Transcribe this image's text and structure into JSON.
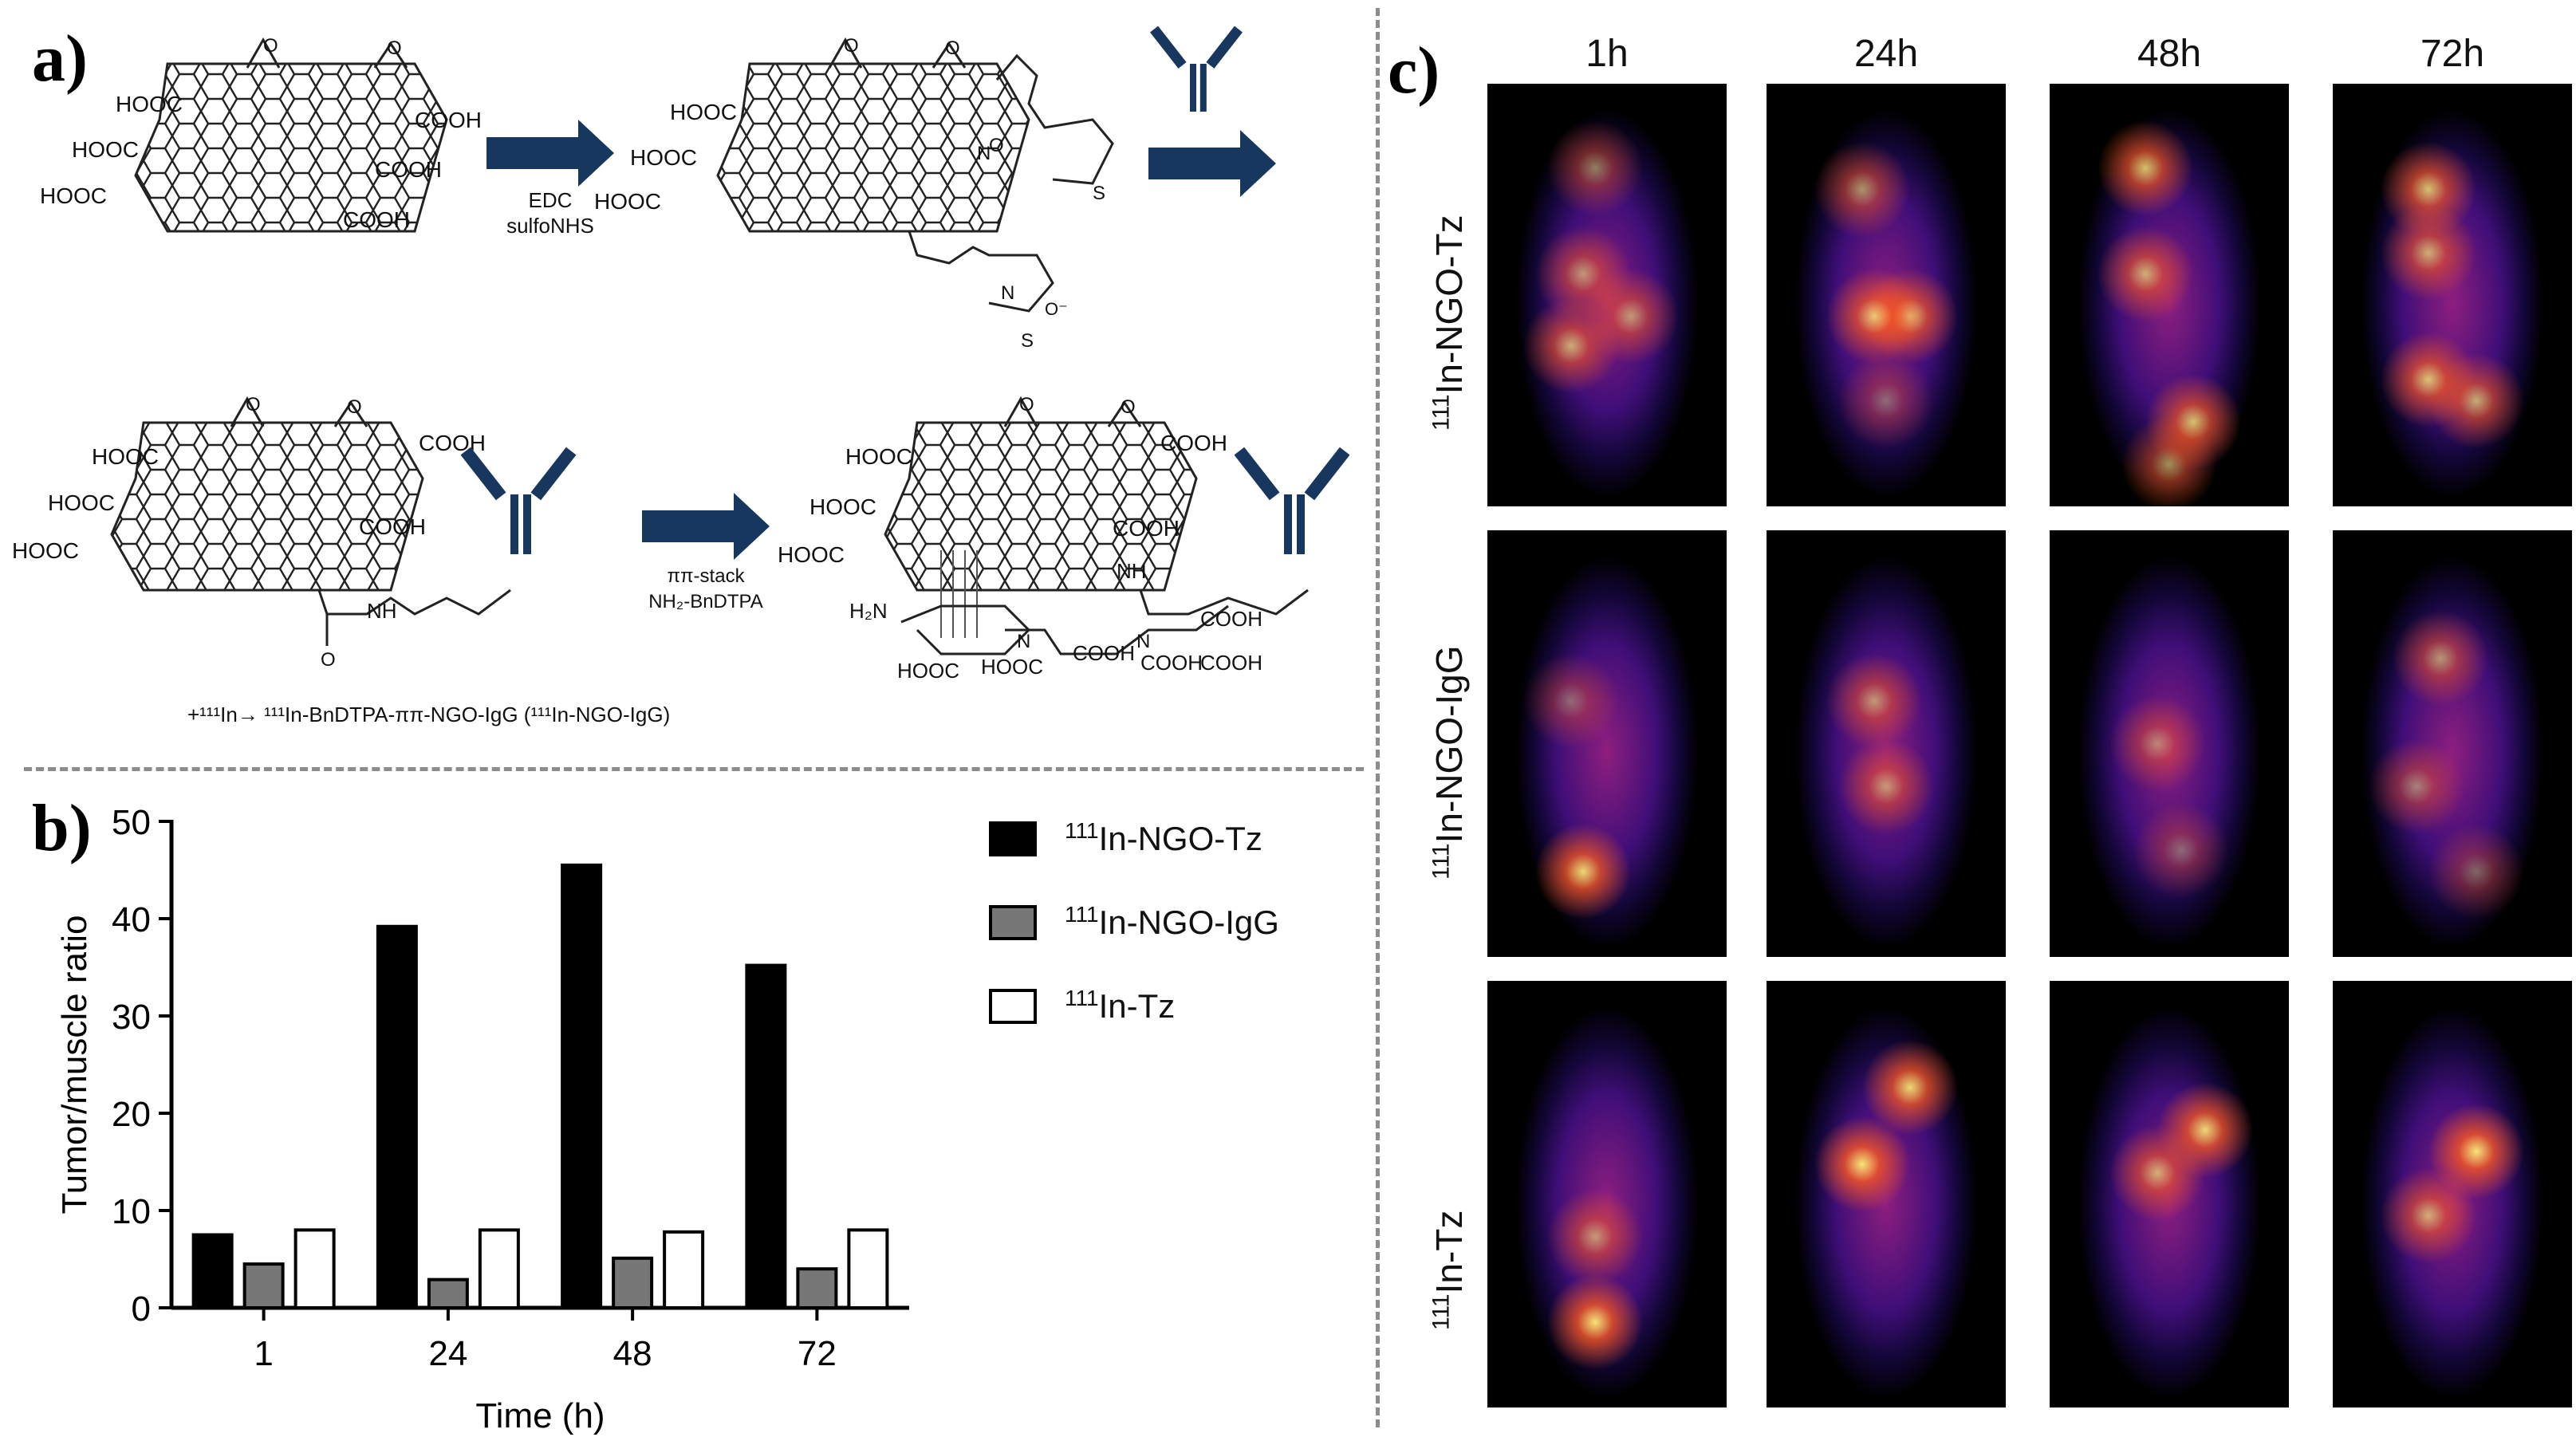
{
  "panels": {
    "a": "a)",
    "b": "b)",
    "c": "c)"
  },
  "scheme": {
    "step1_reagents": [
      "EDC",
      "sulfoNHS"
    ],
    "step2_reagents": [
      "ππ-stack",
      "NH₂-BnDTPA"
    ],
    "groups": {
      "cooh": "COOH",
      "hooc": "HOOC",
      "h2n": "H₂N",
      "nh": "NH",
      "n": "N",
      "o": "O",
      "so3": "S",
      "oneg": "O⁻"
    },
    "caption": "+¹¹¹In→ ¹¹¹In-BnDTPA-ππ-NGO-IgG (¹¹¹In-NGO-IgG)"
  },
  "chart_data": {
    "type": "bar",
    "categories": [
      "1",
      "24",
      "48",
      "72"
    ],
    "series": [
      {
        "name": "¹¹¹In-NGO-Tz",
        "values": [
          7.5,
          39.2,
          45.5,
          35.2
        ],
        "color": "#000000"
      },
      {
        "name": "¹¹¹In-NGO-IgG",
        "values": [
          4.5,
          2.9,
          5.1,
          4.0
        ],
        "color": "#777777"
      },
      {
        "name": "¹¹¹In-Tz",
        "values": [
          8.0,
          8.0,
          7.8,
          8.0
        ],
        "color": "#ffffff"
      }
    ],
    "xlabel": "Time (h)",
    "ylabel": "Tumor/muscle ratio",
    "ylim": [
      0,
      50
    ],
    "yticks": [
      "0",
      "10",
      "20",
      "30",
      "40",
      "50"
    ],
    "legend": {
      "placement": "right",
      "entries": [
        {
          "sup": "111",
          "text": "In-NGO-Tz",
          "fill": "#000000"
        },
        {
          "sup": "111",
          "text": "In-NGO-IgG",
          "fill": "#777777"
        },
        {
          "sup": "111",
          "text": "In-Tz",
          "fill": "#ffffff"
        }
      ]
    }
  },
  "imaging": {
    "timepoints": [
      "1h",
      "24h",
      "48h",
      "72h"
    ],
    "rows": [
      {
        "sup": "111",
        "text": "In-NGO-Tz"
      },
      {
        "sup": "111",
        "text": "In-NGO-IgG"
      },
      {
        "sup": "111",
        "text": "In-Tz"
      }
    ]
  }
}
